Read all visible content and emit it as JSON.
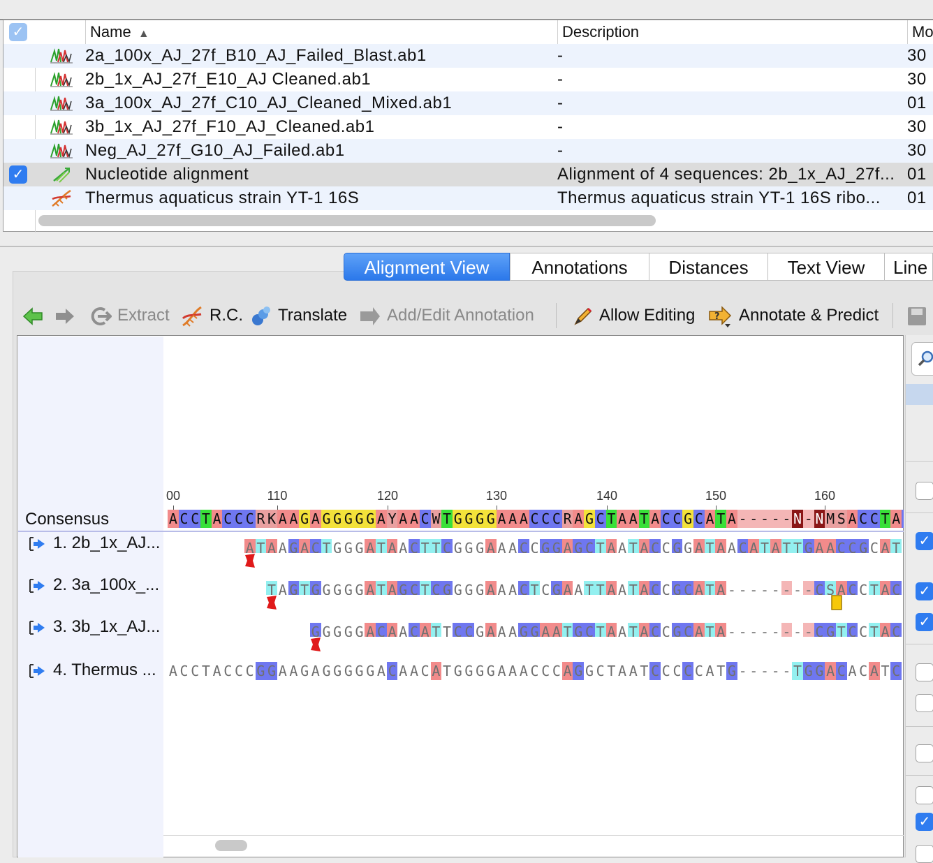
{
  "table": {
    "columns": {
      "name": "Name",
      "description": "Description",
      "modified": "Mo"
    },
    "rows": [
      {
        "name": "2a_100x_AJ_27f_B10_AJ_Failed_Blast.ab1",
        "description": "-",
        "modified": "30",
        "icon": "chromatogram-icon"
      },
      {
        "name": "2b_1x_AJ_27f_E10_AJ Cleaned.ab1",
        "description": "-",
        "modified": "30",
        "icon": "chromatogram-icon"
      },
      {
        "name": "3a_100x_AJ_27f_C10_AJ_Cleaned_Mixed.ab1",
        "description": "-",
        "modified": "01",
        "icon": "chromatogram-icon"
      },
      {
        "name": "3b_1x_AJ_27f_F10_AJ_Cleaned.ab1",
        "description": "-",
        "modified": "30",
        "icon": "chromatogram-icon"
      },
      {
        "name": "Neg_AJ_27f_G10_AJ_Failed.ab1",
        "description": "-",
        "modified": "30",
        "icon": "chromatogram-icon"
      },
      {
        "name": "Nucleotide alignment",
        "description": "Alignment of 4 sequences: 2b_1x_AJ_27f...",
        "modified": "01",
        "icon": "alignment-icon"
      },
      {
        "name": "Thermus aquaticus strain YT-1 16S",
        "description": "Thermus aquaticus strain YT-1 16S ribo...",
        "modified": "01",
        "icon": "dna-icon"
      }
    ]
  },
  "tabs": [
    "Alignment View",
    "Annotations",
    "Distances",
    "Text View",
    "Line"
  ],
  "toolbar": {
    "extract": "Extract",
    "rc": "R.C.",
    "translate": "Translate",
    "add_edit": "Add/Edit Annotation",
    "allow_editing": "Allow Editing",
    "annotate_predict": "Annotate & Predict"
  },
  "ruler": {
    "labels": [
      "00",
      "110",
      "120",
      "130",
      "140",
      "150",
      "160"
    ]
  },
  "alignment": {
    "consensus_label": "Consensus",
    "consensus": "ACCTACCCRKAAGAGGGGGAYAACWTGGGGAAACCCRAGCTAATACCGCATA-----N-NMSACCTAC",
    "sequences": [
      {
        "name": "1. 2b_1x_AJ...",
        "offset": 7,
        "bases": "ATAAGACTGGGATAACTTCGGGAAACCGGAGCTAATACCGGATAACATATTGAACCGCAT"
      },
      {
        "name": "2. 3a_100x_...",
        "offset": 9,
        "bases": "TAGTGGGGGATAGCTCGGGGAAACTCGAATTAATACCGCATA-----N-NCSACCTAC"
      },
      {
        "name": "3. 3b_1x_AJ...",
        "offset": 13,
        "bases": "GGGGGACAACATTCCGAAAGGAATGCTAATACCGCATA-----N-NCGTCCTAC"
      },
      {
        "name": "4. Thermus ...",
        "offset": 0,
        "bases": "ACCTACCCGGAAGAGGGGGACAACATGGGGAAACCCAGGCTAATCCCCCATG-----TGGACACATCC"
      }
    ]
  }
}
